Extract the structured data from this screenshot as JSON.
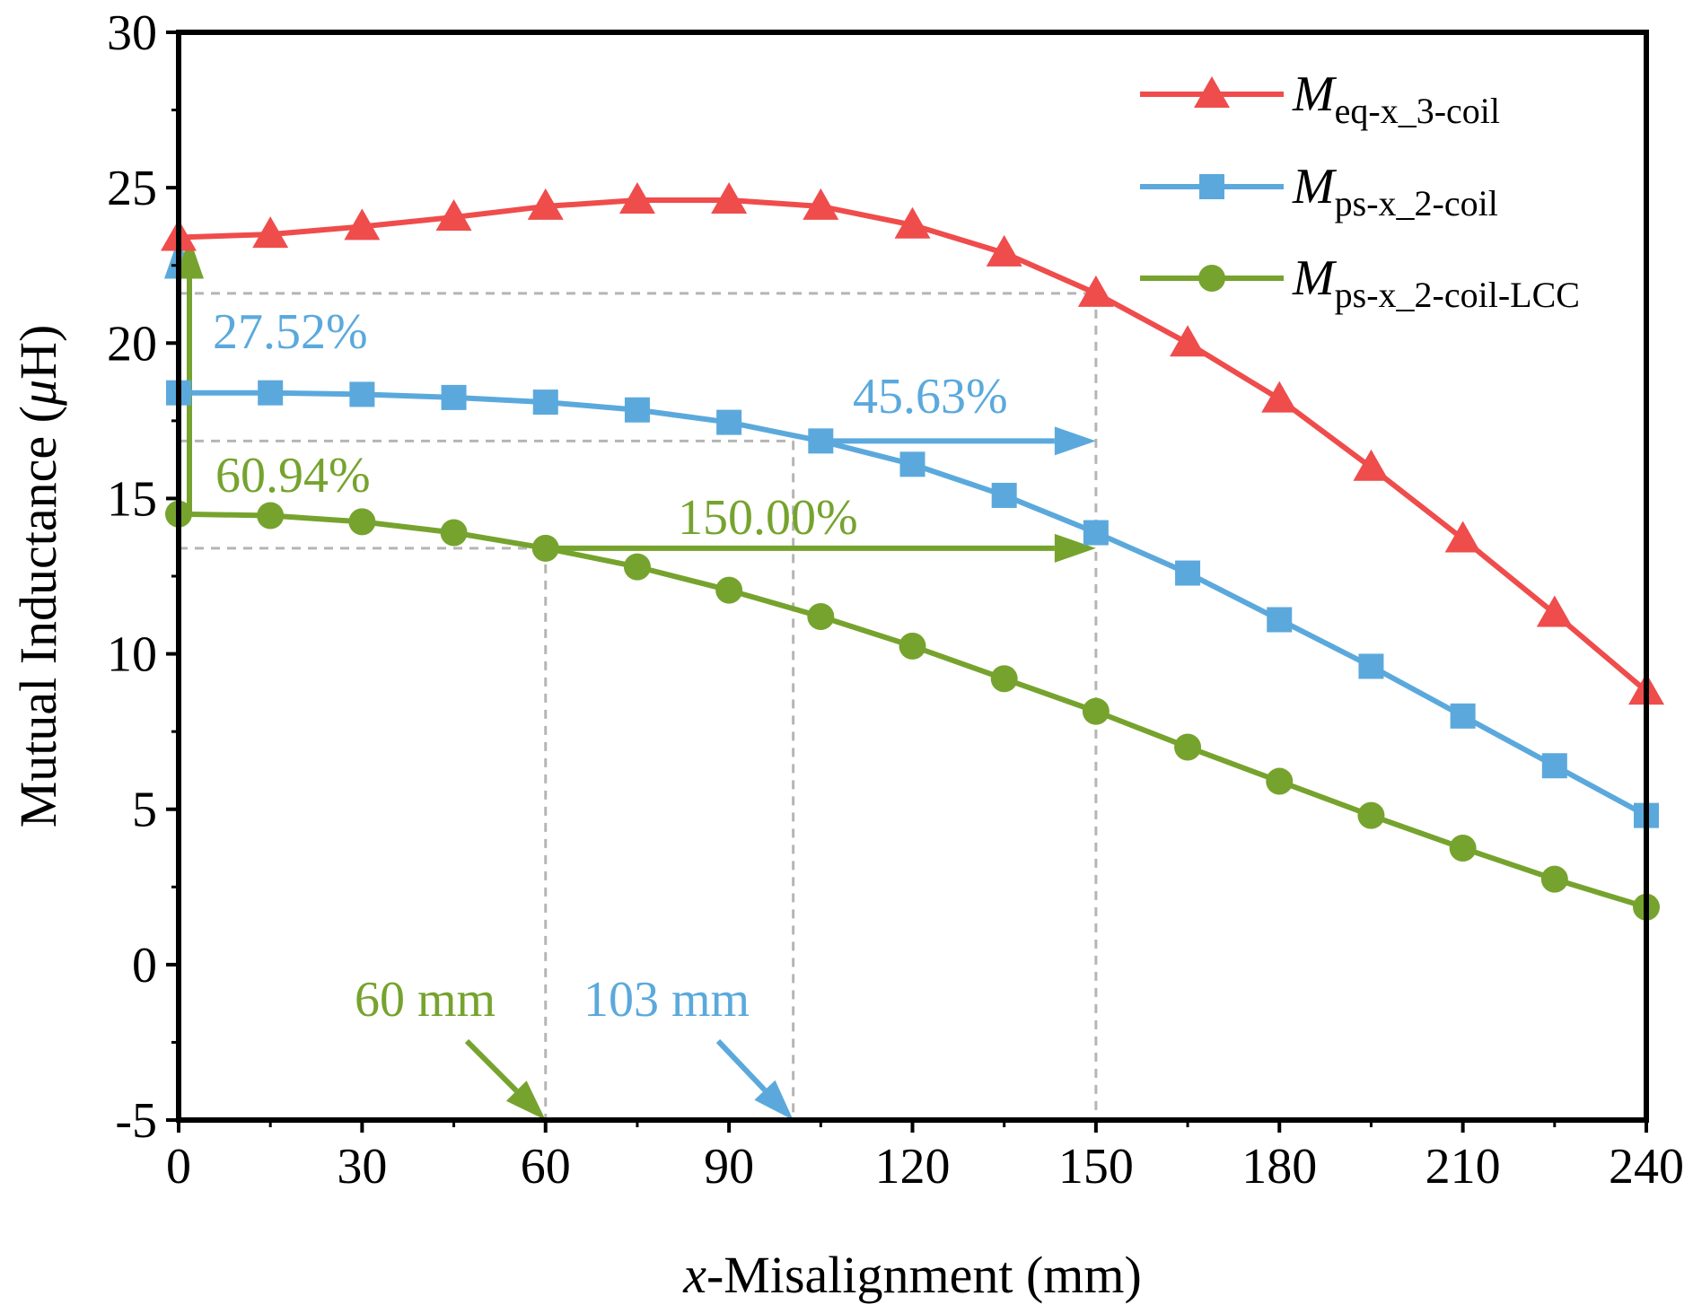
{
  "chart_data": {
    "type": "line",
    "title": "",
    "xlabel": {
      "italic": "x",
      "rest": "-Misalignment (mm)"
    },
    "ylabel": {
      "before": "Mutual Inductance (",
      "italic": "μ",
      "after": "H)"
    },
    "xlim": [
      0,
      240
    ],
    "ylim": [
      -5,
      30
    ],
    "x_ticks": [
      0,
      30,
      60,
      90,
      120,
      150,
      180,
      210,
      240
    ],
    "y_ticks": [
      -5,
      0,
      5,
      10,
      15,
      20,
      25,
      30
    ],
    "grid": false,
    "legend_position": "top-right",
    "x": [
      0,
      15,
      30,
      45,
      60,
      75,
      90,
      105,
      120,
      135,
      150,
      165,
      180,
      195,
      210,
      225,
      240
    ],
    "series": [
      {
        "name": "M_eq-x_3-coil",
        "legend_main": "M",
        "legend_sub": "eq-x_3-coil",
        "color": "#ef4c4c",
        "marker": "triangle",
        "values": [
          23.4,
          23.5,
          23.75,
          24.05,
          24.4,
          24.6,
          24.6,
          24.4,
          23.8,
          22.9,
          21.6,
          20.0,
          18.2,
          16.0,
          13.7,
          11.3,
          8.8
        ]
      },
      {
        "name": "M_ps-x_2-coil",
        "legend_main": "M",
        "legend_sub": "ps-x_2-coil",
        "color": "#5ba9dc",
        "marker": "square",
        "values": [
          18.4,
          18.4,
          18.35,
          18.25,
          18.1,
          17.85,
          17.45,
          16.85,
          16.1,
          15.1,
          13.9,
          12.6,
          11.1,
          9.6,
          8.0,
          6.4,
          4.8
        ]
      },
      {
        "name": "M_ps-x_2-coil-LCC",
        "legend_main": "M",
        "legend_sub": "ps-x_2-coil-LCC",
        "color": "#76a32e",
        "marker": "circle",
        "values": [
          14.5,
          14.45,
          14.25,
          13.9,
          13.4,
          12.8,
          12.05,
          11.2,
          10.25,
          9.2,
          8.15,
          7.0,
          5.9,
          4.8,
          3.75,
          2.75,
          1.85
        ]
      }
    ],
    "annotations": [
      {
        "id": "pct-blue",
        "text": "27.52%",
        "color": "#5ba9dc"
      },
      {
        "id": "pct-blue-2",
        "text": "45.63%",
        "color": "#5ba9dc"
      },
      {
        "id": "pct-green",
        "text": "60.94%",
        "color": "#76a32e"
      },
      {
        "id": "pct-green-2",
        "text": "150.00%",
        "color": "#76a32e"
      },
      {
        "id": "mm-green",
        "text": "60 mm",
        "color": "#76a32e"
      },
      {
        "id": "mm-blue",
        "text": "103 mm",
        "color": "#5ba9dc"
      }
    ],
    "reference_lines": {
      "color": "#b5b5b5",
      "horizontal_at_y": [
        21.6,
        16.85,
        13.4
      ],
      "vertical_at_x": [
        60,
        100.5,
        150
      ]
    }
  }
}
